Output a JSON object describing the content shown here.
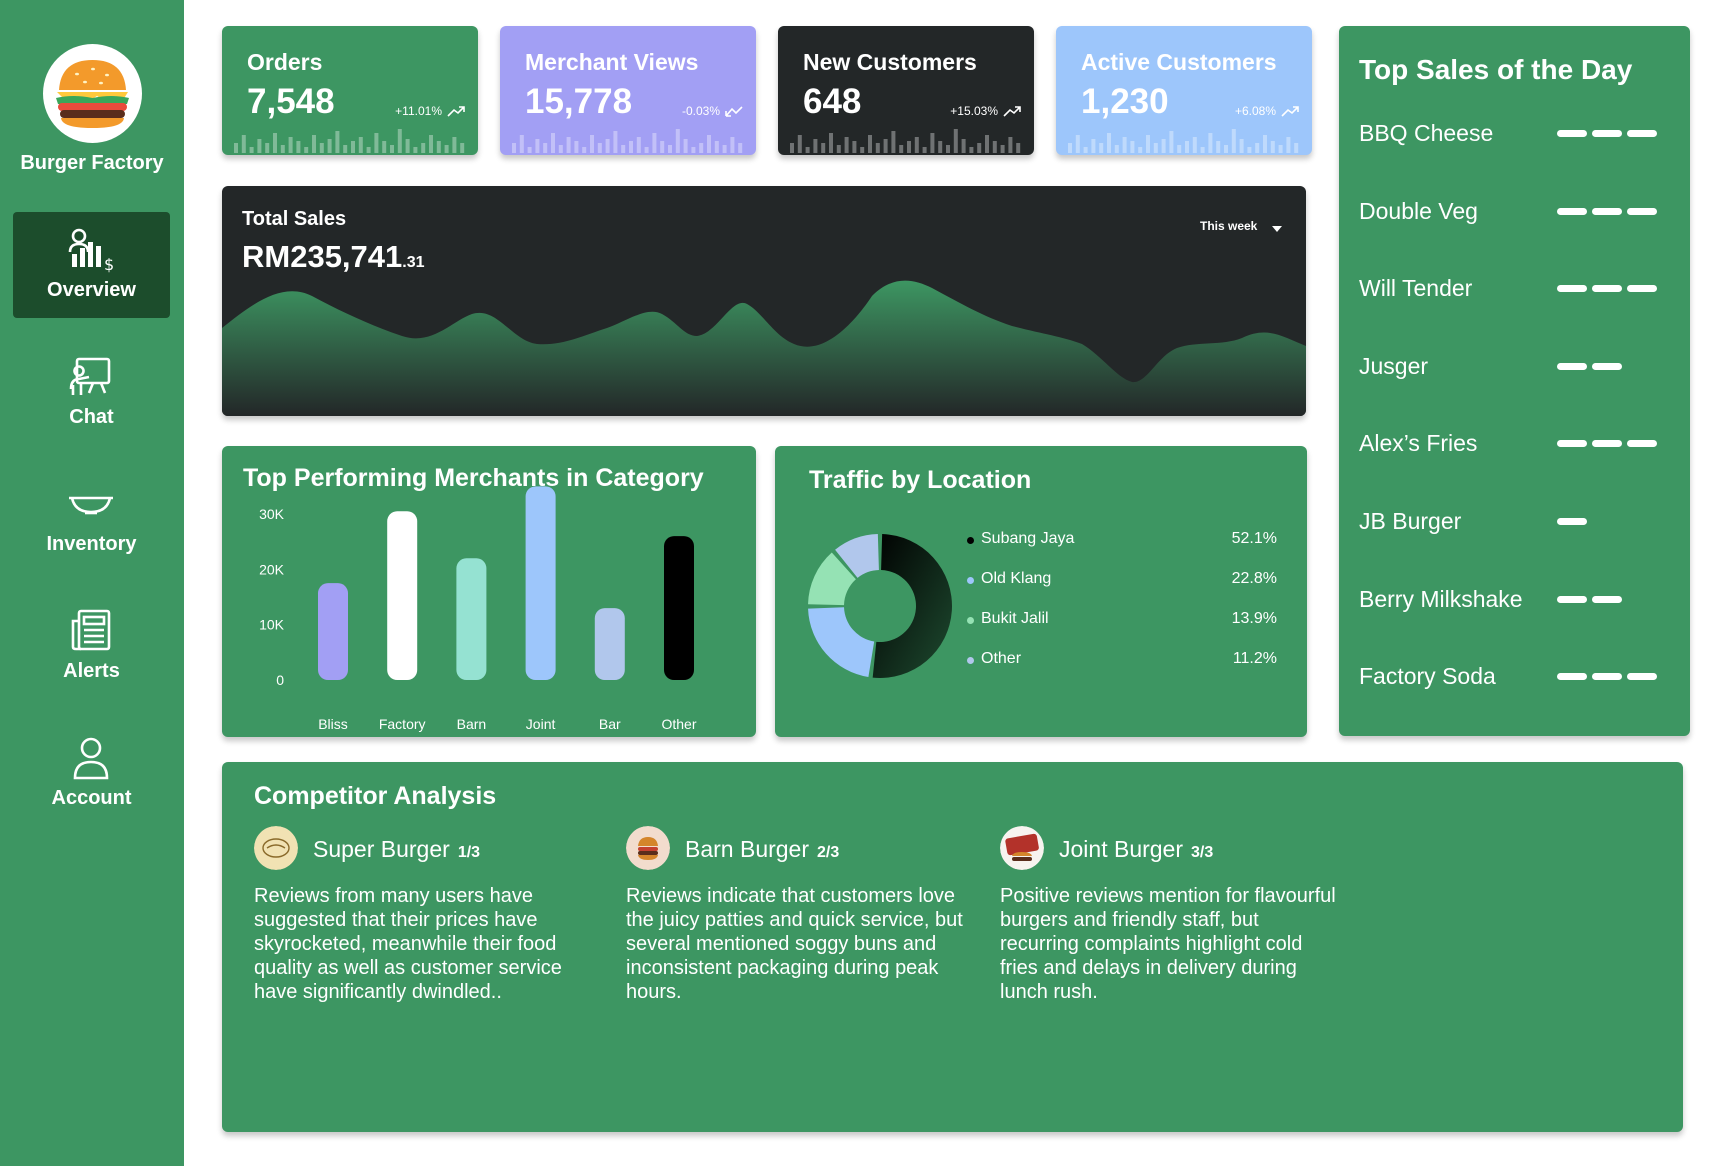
{
  "brand": {
    "name": "Burger Factory",
    "logo_icon": "burger-logo-icon"
  },
  "nav": [
    {
      "label": "Overview",
      "icon": "analytics-icon",
      "active": true
    },
    {
      "label": "Chat",
      "icon": "presentation-icon",
      "active": false
    },
    {
      "label": "Inventory",
      "icon": "bowl-icon",
      "active": false
    },
    {
      "label": "Alerts",
      "icon": "newspaper-icon",
      "active": false
    },
    {
      "label": "Account",
      "icon": "user-icon",
      "active": false
    }
  ],
  "stats": [
    {
      "title": "Orders",
      "value": "7,548",
      "change": "+11.01%",
      "trend": "up",
      "bg": "#3d9662",
      "text": "#ffffff"
    },
    {
      "title": "Merchant Views",
      "value": "15,778",
      "change": "-0.03%",
      "trend": "down",
      "bg": "#a29ff4",
      "text": "#ffffff"
    },
    {
      "title": "New Customers",
      "value": "648",
      "change": "+15.03%",
      "trend": "up",
      "bg": "#232728",
      "text": "#ffffff"
    },
    {
      "title": "Active Customers",
      "value": "1,230",
      "change": "+6.08%",
      "trend": "up",
      "bg": "#9dc6fb",
      "text": "#ffffff"
    }
  ],
  "sales": {
    "label": "Total Sales",
    "value_main": "RM235,741",
    "value_decimal": ".31",
    "period": "This week",
    "period_icon": "caret-down-icon"
  },
  "merchants": {
    "title": "Top Performing Merchants in Category",
    "chart_data": {
      "type": "bar",
      "categories": [
        "Bliss",
        "Factory",
        "Barn",
        "Joint",
        "Bar",
        "Other"
      ],
      "values": [
        17500,
        30500,
        22000,
        35000,
        13000,
        26000
      ],
      "ylim": [
        0,
        30000
      ],
      "yticks": [
        "0",
        "10K",
        "20K",
        "30K"
      ],
      "colors": [
        "#a29ff4",
        "#ffffff",
        "#95e2d2",
        "#9dc6fb",
        "#b1c7ec",
        "#000000"
      ],
      "grid": false,
      "legend": "none"
    }
  },
  "traffic": {
    "title": "Traffic by Location",
    "chart_data": {
      "type": "pie",
      "labels": [
        "Subang Jaya",
        "Old Klang",
        "Bukit Jalil",
        "Other"
      ],
      "values": [
        52.1,
        22.8,
        13.9,
        11.2
      ],
      "value_labels": [
        "52.1%",
        "22.8%",
        "13.9%",
        "11.2%"
      ],
      "colors": [
        "#1b3a27",
        "#9dc6fb",
        "#95e2b4",
        "#b1c7ec"
      ],
      "dot_colors": [
        "#000000",
        "#9dc6fb",
        "#95e2b4",
        "#b1c7ec"
      ],
      "legend": "right"
    }
  },
  "top_sales": {
    "title": "Top Sales of the Day",
    "items": [
      {
        "name": "BBQ Cheese",
        "level": 3
      },
      {
        "name": "Double Veg",
        "level": 3
      },
      {
        "name": "Will Tender",
        "level": 3
      },
      {
        "name": "Jusger",
        "level": 2
      },
      {
        "name": "Alex’s Fries",
        "level": 3
      },
      {
        "name": "JB Burger",
        "level": 1
      },
      {
        "name": "Berry Milkshake",
        "level": 2
      },
      {
        "name": "Factory Soda",
        "level": 3
      }
    ]
  },
  "competitors": {
    "title": "Competitor Analysis",
    "items": [
      {
        "name": "Super Burger",
        "rank": "1/3",
        "avatar": "super-burger-logo-icon",
        "review": "Reviews from many users have suggested that their prices have skyrocketed, meanwhile their food quality as well as customer service have significantly dwindled.."
      },
      {
        "name": "Barn Burger",
        "rank": "2/3",
        "avatar": "barn-burger-logo-icon",
        "review": "Reviews indicate that customers love the juicy patties and quick service, but several mentioned soggy buns and inconsistent packaging during peak hours."
      },
      {
        "name": "Joint Burger",
        "rank": "3/3",
        "avatar": "joint-burger-logo-icon",
        "review": "Positive reviews mention for flavourful burgers and friendly staff, but recurring complaints highlight cold fries and delays in delivery during lunch rush."
      }
    ]
  }
}
